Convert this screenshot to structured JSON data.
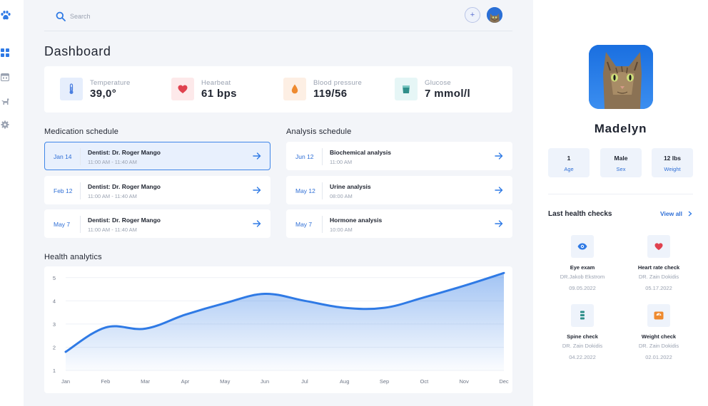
{
  "app": {
    "brand_icon": "paw-icon",
    "accent": "#2f7ae5"
  },
  "nav": [
    {
      "icon": "dashboard-icon",
      "active": true
    },
    {
      "icon": "calendar-icon",
      "active": false
    },
    {
      "icon": "dog-icon",
      "active": false
    },
    {
      "icon": "gear-icon",
      "active": false
    }
  ],
  "search": {
    "placeholder": "Search",
    "value": ""
  },
  "header": {
    "add_label": "+"
  },
  "page": {
    "title": "Dashboard"
  },
  "vitals": [
    {
      "label": "Temperature",
      "value": "39,0°",
      "icon": "thermometer-icon",
      "bg": "#e6eefc",
      "color": "#4b7fe0"
    },
    {
      "label": "Hearbeat",
      "value": "61 bps",
      "icon": "heart-icon",
      "bg": "#fde9ea",
      "color": "#e0424f"
    },
    {
      "label": "Blood pressure",
      "value": "119/56",
      "icon": "drop-icon",
      "bg": "#fdefe4",
      "color": "#ee8a2f"
    },
    {
      "label": "Glucose",
      "value": "7 mmol/l",
      "icon": "cup-icon",
      "bg": "#e6f6f6",
      "color": "#2f8f8a"
    }
  ],
  "medication": {
    "title": "Medication schedule",
    "items": [
      {
        "date": "Jan 14",
        "title": "Dentist: Dr. Roger Mango",
        "time": "11:00 AM - 11:40 AM",
        "active": true
      },
      {
        "date": "Feb 12",
        "title": "Dentist: Dr. Roger Mango",
        "time": "11:00 AM - 11:40 AM",
        "active": false
      },
      {
        "date": "May 7",
        "title": "Dentist: Dr. Roger Mango",
        "time": "11:00 AM - 11:40 AM",
        "active": false
      }
    ]
  },
  "analysis": {
    "title": "Analysis schedule",
    "items": [
      {
        "date": "Jun 12",
        "title": "Biochemical analysis",
        "time": "11:00 AM"
      },
      {
        "date": "May 12",
        "title": "Urine analysis",
        "time": "08:00 AM"
      },
      {
        "date": "May 7",
        "title": "Hormone analysis",
        "time": "10:00 AM"
      }
    ]
  },
  "analytics": {
    "title": "Health analytics"
  },
  "chart_data": {
    "type": "area",
    "categories": [
      "Jan",
      "Feb",
      "Mar",
      "Apr",
      "May",
      "Jun",
      "Jul",
      "Aug",
      "Sep",
      "Oct",
      "Nov",
      "Dec"
    ],
    "series": [
      {
        "values": [
          1.8,
          2.85,
          2.8,
          3.4,
          3.9,
          4.3,
          4.0,
          3.7,
          3.7,
          4.15,
          4.65,
          5.2
        ]
      }
    ],
    "y_ticks": [
      1,
      2,
      3,
      4,
      5
    ],
    "ylim": [
      1,
      5.3
    ],
    "grid": true,
    "color": "#2f7ae5"
  },
  "pet": {
    "name": "Madelyn",
    "stats": [
      {
        "value": "1",
        "label": "Age"
      },
      {
        "value": "Male",
        "label": "Sex"
      },
      {
        "value": "12 lbs",
        "label": "Weight"
      }
    ]
  },
  "health_checks": {
    "title": "Last health checks",
    "view_all": "View all",
    "items": [
      {
        "name": "Eye exam",
        "doctor": "DR.Jakob Ekstrom",
        "date": "09.05.2022",
        "icon": "eye-icon",
        "color": "#2f7ae5"
      },
      {
        "name": "Heart rate check",
        "doctor": "DR. Zain Dokidis",
        "date": "05.17.2022",
        "icon": "heart-icon",
        "color": "#e0424f"
      },
      {
        "name": "Spine check",
        "doctor": "DR. Zain Dokidis",
        "date": "04.22.2022",
        "icon": "spine-icon",
        "color": "#2f8f8a"
      },
      {
        "name": "Weight check",
        "doctor": "DR. Zain Dokidis",
        "date": "02.01.2022",
        "icon": "scale-icon",
        "color": "#ee8a2f"
      }
    ]
  }
}
